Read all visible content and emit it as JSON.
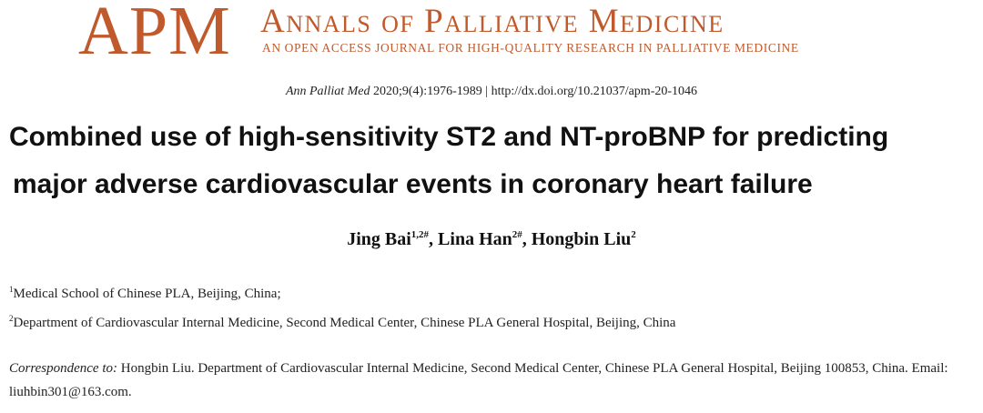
{
  "masthead": {
    "logo": "APM",
    "journal_name": "Annals of Palliative Medicine",
    "tagline": "AN OPEN ACCESS JOURNAL FOR HIGH-QUALITY RESEARCH IN PALLIATIVE MEDICINE",
    "brand_color": "#c05a2c"
  },
  "citation": {
    "journal": "Ann Palliat Med",
    "details": " 2020;9(4):1976-1989 | http://dx.doi.org/10.21037/apm-20-1046"
  },
  "title": {
    "line1": "Combined use of high-sensitivity ST2 and NT-proBNP for predicting",
    "line2": "major adverse cardiovascular events in coronary heart failure"
  },
  "authors": [
    {
      "name": "Jing Bai",
      "sup": "1,2#",
      "sep": ", "
    },
    {
      "name": "Lina Han",
      "sup": "2#",
      "sep": ", "
    },
    {
      "name": "Hongbin Liu",
      "sup": "2",
      "sep": ""
    }
  ],
  "affiliations": [
    {
      "num": "1",
      "text": "Medical School of Chinese PLA, Beijing, China;"
    },
    {
      "num": "2",
      "text": "Department of Cardiovascular Internal Medicine, Second Medical Center, Chinese PLA General Hospital, Beijing, China"
    }
  ],
  "correspondence": {
    "label": "Correspondence to:",
    "text": " Hongbin Liu. Department of Cardiovascular Internal Medicine, Second Medical Center, Chinese PLA General Hospital, Beijing 100853, China. Email: liuhbin301@163.com."
  }
}
